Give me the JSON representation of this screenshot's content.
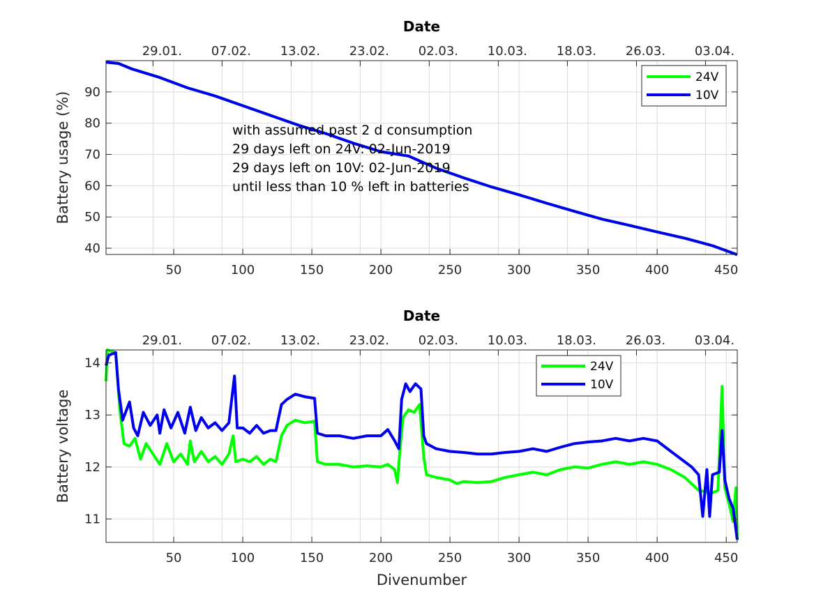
{
  "chart_data": [
    {
      "type": "line",
      "title": "Date",
      "ylabel": "Battery usage (%)",
      "xlabel": "",
      "xlim": [
        1,
        458
      ],
      "ylim": [
        38,
        100
      ],
      "x_ticks": [
        50,
        100,
        150,
        200,
        250,
        300,
        350,
        400,
        450
      ],
      "y_ticks": [
        40,
        50,
        60,
        70,
        80,
        90
      ],
      "top_tick_pos": [
        35,
        85,
        135,
        185,
        235,
        285,
        335,
        385,
        435
      ],
      "top_ticks": [
        "29.01.",
        "07.02.",
        "13.02.",
        "23.02.",
        "02.03.",
        "10.03.",
        "18.03.",
        "26.03.",
        "03.04."
      ],
      "grid": true,
      "legend_position": "top-right",
      "annotation": [
        "with assumed past 2 d consumption",
        "29 days left on 24V: 02-Jun-2019",
        "29 days left on 10V: 02-Jun-2019",
        "until less than 10 % left in batteries"
      ],
      "series": [
        {
          "name": "24V",
          "color": "#00ff00",
          "points": [
            [
              1,
              99.5
            ],
            [
              10,
              99.1
            ],
            [
              20,
              97.3
            ],
            [
              40,
              94.6
            ],
            [
              60,
              91.3
            ],
            [
              80,
              88.7
            ],
            [
              100,
              85.6
            ],
            [
              120,
              82.5
            ],
            [
              140,
              79.4
            ],
            [
              160,
              76.7
            ],
            [
              180,
              73.6
            ],
            [
              200,
              70.9
            ],
            [
              220,
              69.5
            ],
            [
              240,
              65.6
            ],
            [
              260,
              62.5
            ],
            [
              280,
              59.6
            ],
            [
              300,
              57.1
            ],
            [
              320,
              54.4
            ],
            [
              340,
              51.8
            ],
            [
              360,
              49.3
            ],
            [
              380,
              47.3
            ],
            [
              400,
              45.2
            ],
            [
              420,
              43.2
            ],
            [
              440,
              40.8
            ],
            [
              458,
              37.9
            ]
          ]
        },
        {
          "name": "10V",
          "color": "#0000ee",
          "points": [
            [
              1,
              99.5
            ],
            [
              10,
              99.1
            ],
            [
              20,
              97.3
            ],
            [
              40,
              94.6
            ],
            [
              60,
              91.3
            ],
            [
              80,
              88.7
            ],
            [
              100,
              85.6
            ],
            [
              120,
              82.5
            ],
            [
              140,
              79.4
            ],
            [
              160,
              76.7
            ],
            [
              180,
              73.6
            ],
            [
              200,
              70.9
            ],
            [
              220,
              69.5
            ],
            [
              240,
              65.6
            ],
            [
              260,
              62.5
            ],
            [
              280,
              59.6
            ],
            [
              300,
              57.1
            ],
            [
              320,
              54.4
            ],
            [
              340,
              51.8
            ],
            [
              360,
              49.3
            ],
            [
              380,
              47.3
            ],
            [
              400,
              45.2
            ],
            [
              420,
              43.2
            ],
            [
              440,
              40.8
            ],
            [
              458,
              37.9
            ]
          ]
        }
      ]
    },
    {
      "type": "line",
      "title": "Date",
      "ylabel": "Battery voltage",
      "xlabel": "Divenumber",
      "xlim": [
        1,
        458
      ],
      "ylim": [
        10.55,
        14.25
      ],
      "x_ticks": [
        50,
        100,
        150,
        200,
        250,
        300,
        350,
        400,
        450
      ],
      "y_ticks": [
        11,
        12,
        13,
        14
      ],
      "top_tick_pos": [
        35,
        85,
        135,
        185,
        235,
        285,
        335,
        385,
        435
      ],
      "top_ticks": [
        "29.01.",
        "07.02.",
        "13.02.",
        "23.02.",
        "02.03.",
        "10.03.",
        "18.03.",
        "26.03.",
        "03.04."
      ],
      "grid": true,
      "legend_position": "top-center",
      "series": [
        {
          "name": "24V",
          "color": "#00ff00",
          "points": [
            [
              1,
              13.65
            ],
            [
              2,
              14.25
            ],
            [
              8,
              14.2
            ],
            [
              11,
              13.1
            ],
            [
              14,
              12.45
            ],
            [
              18,
              12.4
            ],
            [
              22,
              12.55
            ],
            [
              26,
              12.15
            ],
            [
              30,
              12.45
            ],
            [
              35,
              12.25
            ],
            [
              40,
              12.05
            ],
            [
              45,
              12.45
            ],
            [
              50,
              12.1
            ],
            [
              55,
              12.25
            ],
            [
              60,
              12.05
            ],
            [
              62,
              12.5
            ],
            [
              65,
              12.1
            ],
            [
              70,
              12.3
            ],
            [
              75,
              12.1
            ],
            [
              80,
              12.2
            ],
            [
              85,
              12.05
            ],
            [
              90,
              12.25
            ],
            [
              93,
              12.6
            ],
            [
              95,
              12.1
            ],
            [
              100,
              12.15
            ],
            [
              105,
              12.1
            ],
            [
              110,
              12.2
            ],
            [
              115,
              12.05
            ],
            [
              120,
              12.15
            ],
            [
              124,
              12.1
            ],
            [
              128,
              12.6
            ],
            [
              132,
              12.8
            ],
            [
              138,
              12.9
            ],
            [
              145,
              12.85
            ],
            [
              152,
              12.88
            ],
            [
              154,
              12.1
            ],
            [
              160,
              12.05
            ],
            [
              170,
              12.05
            ],
            [
              180,
              12.0
            ],
            [
              190,
              12.02
            ],
            [
              200,
              12.0
            ],
            [
              205,
              12.05
            ],
            [
              210,
              11.95
            ],
            [
              212,
              11.7
            ],
            [
              214,
              12.4
            ],
            [
              216,
              12.95
            ],
            [
              220,
              13.1
            ],
            [
              224,
              13.05
            ],
            [
              228,
              13.2
            ],
            [
              231,
              12.2
            ],
            [
              233,
              11.85
            ],
            [
              240,
              11.8
            ],
            [
              250,
              11.75
            ],
            [
              255,
              11.68
            ],
            [
              260,
              11.72
            ],
            [
              270,
              11.7
            ],
            [
              280,
              11.72
            ],
            [
              290,
              11.8
            ],
            [
              300,
              11.85
            ],
            [
              310,
              11.9
            ],
            [
              320,
              11.85
            ],
            [
              330,
              11.95
            ],
            [
              340,
              12.0
            ],
            [
              350,
              11.98
            ],
            [
              360,
              12.05
            ],
            [
              370,
              12.1
            ],
            [
              380,
              12.05
            ],
            [
              390,
              12.1
            ],
            [
              400,
              12.05
            ],
            [
              410,
              11.95
            ],
            [
              420,
              11.8
            ],
            [
              430,
              11.55
            ],
            [
              440,
              11.5
            ],
            [
              444,
              11.55
            ],
            [
              447,
              13.55
            ],
            [
              449,
              11.6
            ],
            [
              452,
              11.3
            ],
            [
              455,
              10.95
            ],
            [
              457,
              11.6
            ],
            [
              458,
              10.6
            ]
          ]
        },
        {
          "name": "10V",
          "color": "#0000ee",
          "points": [
            [
              1,
              13.95
            ],
            [
              3,
              14.15
            ],
            [
              8,
              14.2
            ],
            [
              10,
              13.5
            ],
            [
              13,
              12.9
            ],
            [
              18,
              13.25
            ],
            [
              21,
              12.75
            ],
            [
              24,
              12.6
            ],
            [
              28,
              13.05
            ],
            [
              33,
              12.8
            ],
            [
              38,
              13.0
            ],
            [
              40,
              12.65
            ],
            [
              43,
              13.1
            ],
            [
              48,
              12.75
            ],
            [
              53,
              13.05
            ],
            [
              58,
              12.65
            ],
            [
              62,
              13.15
            ],
            [
              66,
              12.7
            ],
            [
              70,
              12.95
            ],
            [
              75,
              12.75
            ],
            [
              80,
              12.85
            ],
            [
              85,
              12.7
            ],
            [
              90,
              12.85
            ],
            [
              94,
              13.75
            ],
            [
              96,
              12.75
            ],
            [
              100,
              12.75
            ],
            [
              105,
              12.65
            ],
            [
              110,
              12.8
            ],
            [
              115,
              12.65
            ],
            [
              120,
              12.7
            ],
            [
              124,
              12.7
            ],
            [
              128,
              13.2
            ],
            [
              132,
              13.3
            ],
            [
              138,
              13.4
            ],
            [
              145,
              13.35
            ],
            [
              152,
              13.32
            ],
            [
              154,
              12.65
            ],
            [
              160,
              12.6
            ],
            [
              170,
              12.6
            ],
            [
              180,
              12.55
            ],
            [
              190,
              12.6
            ],
            [
              200,
              12.6
            ],
            [
              205,
              12.72
            ],
            [
              210,
              12.5
            ],
            [
              213,
              12.35
            ],
            [
              215,
              13.3
            ],
            [
              218,
              13.6
            ],
            [
              221,
              13.45
            ],
            [
              225,
              13.6
            ],
            [
              229,
              13.5
            ],
            [
              231,
              12.6
            ],
            [
              233,
              12.45
            ],
            [
              240,
              12.35
            ],
            [
              250,
              12.3
            ],
            [
              260,
              12.28
            ],
            [
              270,
              12.25
            ],
            [
              280,
              12.25
            ],
            [
              290,
              12.28
            ],
            [
              300,
              12.3
            ],
            [
              310,
              12.35
            ],
            [
              320,
              12.3
            ],
            [
              330,
              12.38
            ],
            [
              340,
              12.45
            ],
            [
              350,
              12.48
            ],
            [
              360,
              12.5
            ],
            [
              370,
              12.55
            ],
            [
              380,
              12.5
            ],
            [
              390,
              12.55
            ],
            [
              400,
              12.5
            ],
            [
              410,
              12.3
            ],
            [
              420,
              12.1
            ],
            [
              425,
              12.0
            ],
            [
              430,
              11.85
            ],
            [
              433,
              11.05
            ],
            [
              436,
              11.95
            ],
            [
              438,
              11.05
            ],
            [
              440,
              11.85
            ],
            [
              445,
              11.9
            ],
            [
              447,
              12.7
            ],
            [
              449,
              11.75
            ],
            [
              452,
              11.4
            ],
            [
              455,
              11.2
            ],
            [
              458,
              10.6
            ]
          ]
        }
      ]
    }
  ]
}
